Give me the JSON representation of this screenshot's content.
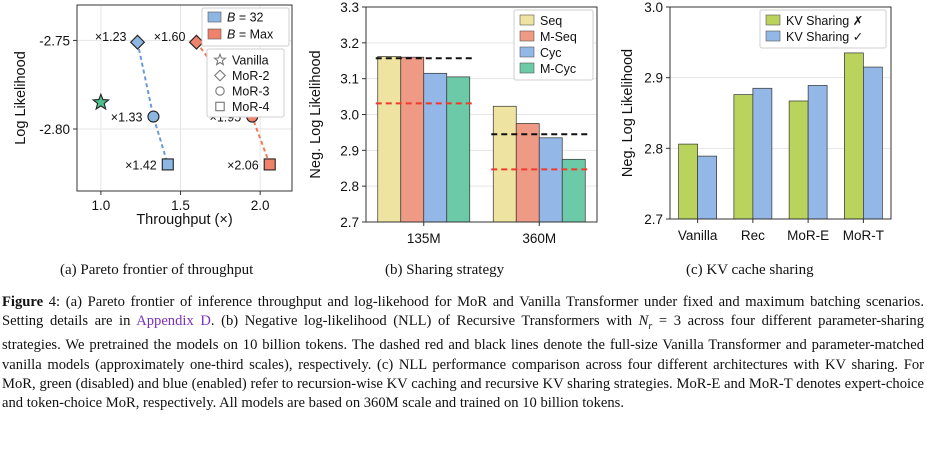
{
  "panels": {
    "a": {
      "caption": "(a) Pareto frontier of throughput",
      "xlabel": "Throughput (×)",
      "ylabel": "Log Likelihood",
      "xlim": [
        0.85,
        2.2
      ],
      "ylim": [
        -2.835,
        -2.73
      ],
      "xticks": [
        1.0,
        1.5,
        2.0
      ],
      "xtick_labels": [
        "1.0",
        "1.5",
        "2.0"
      ],
      "yticks": [
        -2.75,
        -2.8
      ],
      "ytick_labels": [
        "-2.75",
        "-2.80"
      ],
      "legend_colors": [
        {
          "label_prefix": "B",
          "label_suffix": " = 32",
          "color": "#8eb6e3"
        },
        {
          "label_prefix": "B",
          "label_suffix": " = Max",
          "color": "#f0826b"
        }
      ],
      "legend_shapes": [
        {
          "label": "Vanilla",
          "shape": "star"
        },
        {
          "label": "MoR-2",
          "shape": "diamond"
        },
        {
          "label": "MoR-3",
          "shape": "circle"
        },
        {
          "label": "MoR-4",
          "shape": "square"
        }
      ],
      "vanilla": {
        "x": 1.0,
        "y": -2.785,
        "color": "#4cbf8c"
      },
      "series": [
        {
          "color": "#8eb6e3",
          "line_color": "#6a9bd6",
          "points": [
            {
              "x": 1.23,
              "y": -2.751,
              "shape": "diamond",
              "label": "×1.23"
            },
            {
              "x": 1.33,
              "y": -2.793,
              "shape": "circle",
              "label": "×1.33"
            },
            {
              "x": 1.42,
              "y": -2.82,
              "shape": "square",
              "label": "×1.42"
            }
          ]
        },
        {
          "color": "#f0826b",
          "line_color": "#ef7b57",
          "points": [
            {
              "x": 1.6,
              "y": -2.751,
              "shape": "diamond",
              "label": "×1.60"
            },
            {
              "x": 1.95,
              "y": -2.793,
              "shape": "circle",
              "label": "×1.95"
            },
            {
              "x": 2.06,
              "y": -2.82,
              "shape": "square",
              "label": "×2.06"
            }
          ]
        }
      ]
    },
    "b": {
      "caption": "(b) Sharing strategy",
      "ylabel": "Neg. Log Likelihood",
      "ylim": [
        2.7,
        3.3
      ],
      "yticks": [
        2.7,
        2.8,
        2.9,
        3.0,
        3.1,
        3.2,
        3.3
      ],
      "ytick_labels": [
        "2.7",
        "2.8",
        "2.9",
        "3.0",
        "3.1",
        "3.2",
        "3.3"
      ],
      "categories": [
        "135M",
        "360M"
      ],
      "series": [
        {
          "name": "Seq",
          "color": "#efe3a1",
          "values": [
            3.162,
            3.023
          ]
        },
        {
          "name": "M-Seq",
          "color": "#ef9a84",
          "values": [
            3.16,
            2.975
          ]
        },
        {
          "name": "Cyc",
          "color": "#93b7e6",
          "values": [
            3.115,
            2.935
          ]
        },
        {
          "name": "M-Cyc",
          "color": "#6ccaa8",
          "values": [
            3.105,
            2.875
          ]
        }
      ],
      "reference_lines": [
        {
          "category": "135M",
          "black": 3.157,
          "red": 3.031
        },
        {
          "category": "360M",
          "black": 2.945,
          "red": 2.847
        }
      ]
    },
    "c": {
      "caption": "(c) KV cache sharing",
      "ylabel": "Neg. Log Likelihood",
      "ylim": [
        2.7,
        3.0
      ],
      "yticks": [
        2.7,
        2.8,
        2.9,
        3.0
      ],
      "ytick_labels": [
        "2.7",
        "2.8",
        "2.9",
        "3.0"
      ],
      "categories": [
        "Vanilla",
        "Rec",
        "MoR-E",
        "MoR-T"
      ],
      "series": [
        {
          "name": "KV Sharing ✗",
          "color": "#b9d35d",
          "values": [
            2.806,
            2.876,
            2.867,
            2.935
          ]
        },
        {
          "name": "KV Sharing ✓",
          "color": "#93b7e6",
          "values": [
            2.789,
            2.885,
            2.889,
            2.915
          ]
        }
      ]
    }
  },
  "caption": {
    "label": "Figure",
    "num": " 4:",
    "t1": " (a) Pareto frontier of inference throughput and log-likehood for MoR and Vanilla Transformer under fixed and maximum batching scenarios. Setting details are in ",
    "link": "Appendix D",
    "t2": ". (b) Negative log-likelihood (NLL) of Recursive Transformers with ",
    "math": "N",
    "math_sub": "r",
    "math_rest": " = 3",
    "t3": " across four different parameter-sharing strategies. We pretrained the models on 10 billion tokens. The dashed red and black lines denote the full-size Vanilla Transformer and parameter-matched vanilla models (approximately one-third scales), respectively. (c) NLL performance comparison across four different architectures with KV sharing. For MoR, green (disabled) and blue (enabled) refer to recursion-wise KV caching and recursive KV sharing strategies. MoR-E and MoR-T denotes expert-choice and token-choice MoR, respectively. All models are based on 360M scale and trained on 10 billion tokens."
  }
}
